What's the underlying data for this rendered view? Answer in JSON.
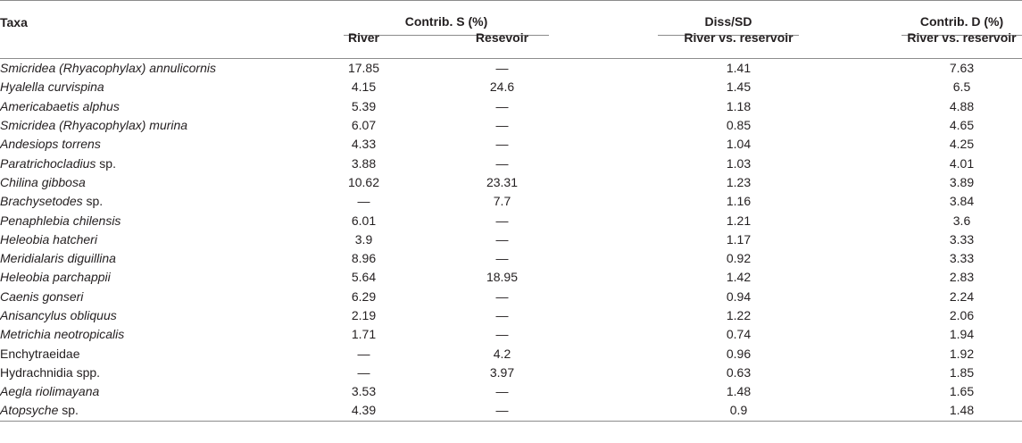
{
  "header": {
    "taxa": "Taxa",
    "contrib_s": "Contrib. S (%)",
    "diss_sd": "Diss/SD",
    "contrib_d": "Contrib. D (%)",
    "river": "River",
    "resevoir": "Resevoir",
    "river_vs_reservoir_1": "River vs. reservoir",
    "river_vs_reservoir_2": "River vs. reservoir"
  },
  "rows": [
    {
      "genus": "Smicridea (Rhyacophylax) annulicornis",
      "suffix": "",
      "river": "17.85",
      "resevoir": "—",
      "diss_sd": "1.41",
      "contrib_d": "7.63"
    },
    {
      "genus": "Hyalella curvispina",
      "suffix": "",
      "river": "4.15",
      "resevoir": "24.6",
      "diss_sd": "1.45",
      "contrib_d": "6.5"
    },
    {
      "genus": "Americabaetis alphus",
      "suffix": "",
      "river": "5.39",
      "resevoir": "—",
      "diss_sd": "1.18",
      "contrib_d": "4.88"
    },
    {
      "genus": "Smicridea (Rhyacophylax) murina",
      "suffix": "",
      "river": "6.07",
      "resevoir": "—",
      "diss_sd": "0.85",
      "contrib_d": "4.65"
    },
    {
      "genus": "Andesiops torrens",
      "suffix": "",
      "river": "4.33",
      "resevoir": "—",
      "diss_sd": "1.04",
      "contrib_d": "4.25"
    },
    {
      "genus": "Paratrichocladius",
      "suffix": " sp.",
      "river": "3.88",
      "resevoir": "—",
      "diss_sd": "1.03",
      "contrib_d": "4.01"
    },
    {
      "genus": "Chilina gibbosa",
      "suffix": "",
      "river": "10.62",
      "resevoir": "23.31",
      "diss_sd": "1.23",
      "contrib_d": "3.89"
    },
    {
      "genus": "Brachysetodes",
      "suffix": " sp.",
      "river": "—",
      "resevoir": "7.7",
      "diss_sd": "1.16",
      "contrib_d": "3.84"
    },
    {
      "genus": "Penaphlebia chilensis",
      "suffix": "",
      "river": "6.01",
      "resevoir": "—",
      "diss_sd": "1.21",
      "contrib_d": "3.6"
    },
    {
      "genus": "Heleobia hatcheri",
      "suffix": "",
      "river": "3.9",
      "resevoir": "—",
      "diss_sd": "1.17",
      "contrib_d": "3.33"
    },
    {
      "genus": "Meridialaris diguillina",
      "suffix": "",
      "river": "8.96",
      "resevoir": "—",
      "diss_sd": "0.92",
      "contrib_d": "3.33"
    },
    {
      "genus": "Heleobia parchappii",
      "suffix": "",
      "river": "5.64",
      "resevoir": "18.95",
      "diss_sd": "1.42",
      "contrib_d": "2.83"
    },
    {
      "genus": "Caenis gonseri",
      "suffix": "",
      "river": "6.29",
      "resevoir": "—",
      "diss_sd": "0.94",
      "contrib_d": "2.24"
    },
    {
      "genus": "Anisancylus obliquus",
      "suffix": "",
      "river": "2.19",
      "resevoir": "—",
      "diss_sd": "1.22",
      "contrib_d": "2.06"
    },
    {
      "genus": "Metrichia neotropicalis",
      "suffix": "",
      "river": "1.71",
      "resevoir": "—",
      "diss_sd": "0.74",
      "contrib_d": "1.94"
    },
    {
      "genus": "",
      "suffix": "Enchytraeidae",
      "river": "—",
      "resevoir": "4.2",
      "diss_sd": "0.96",
      "contrib_d": "1.92"
    },
    {
      "genus": "",
      "suffix": "Hydrachnidia spp.",
      "river": "—",
      "resevoir": "3.97",
      "diss_sd": "0.63",
      "contrib_d": "1.85"
    },
    {
      "genus": "Aegla riolimayana",
      "suffix": "",
      "river": "3.53",
      "resevoir": "—",
      "diss_sd": "1.48",
      "contrib_d": "1.65"
    },
    {
      "genus": "Atopsyche",
      "suffix": " sp.",
      "river": "4.39",
      "resevoir": "—",
      "diss_sd": "0.9",
      "contrib_d": "1.48"
    }
  ]
}
